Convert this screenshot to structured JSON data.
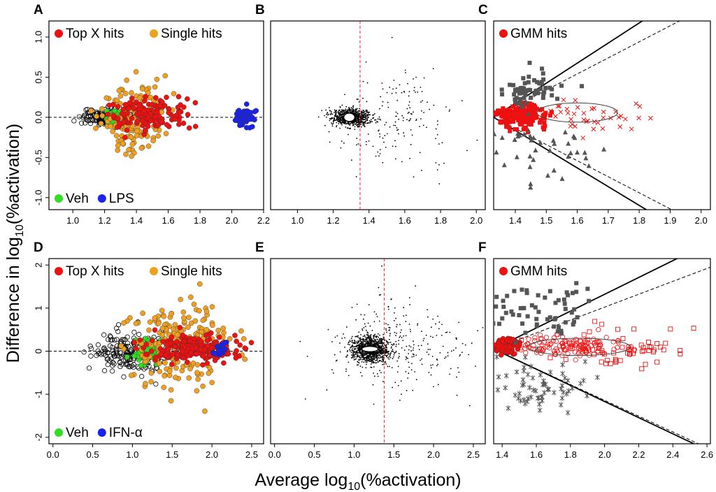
{
  "figure": {
    "ylabel_main": "Difference in log",
    "ylabel_sub": "10",
    "ylabel_rest": "(%activation)",
    "xlabel_main": "Average log",
    "xlabel_sub": "10",
    "xlabel_rest": "(%activation)"
  },
  "colors": {
    "top_x": "#ee1111",
    "single": "#f0a020",
    "veh": "#33dd22",
    "lps": "#1a22ee",
    "ifn": "#1a22ee",
    "gmm": "#ee1111",
    "black": "#000000",
    "gray": "#555555",
    "median_line": "#ee2222"
  },
  "chart_data": [
    {
      "id": "A",
      "panel_label": "A",
      "type": "scatter",
      "xlim": [
        0.85,
        2.2
      ],
      "ylim": [
        -1.15,
        1.2
      ],
      "xticks": [
        1.0,
        1.2,
        1.4,
        1.6,
        1.8,
        2.0,
        2.2
      ],
      "xtick_labels": [
        "1.0",
        "1.2",
        "1.4",
        "1.6",
        "1.8",
        "2.0",
        "2.2"
      ],
      "yticks": [
        -1.0,
        -0.5,
        0.0,
        0.5,
        1.0
      ],
      "ytick_labels": [
        "-1.0",
        "-0.5",
        "0.0",
        "0.5",
        "1.0"
      ],
      "hline_y": 0,
      "legend_top": [
        {
          "label": "Top X hits",
          "color": "top_x"
        },
        {
          "label": "Single hits",
          "color": "single"
        }
      ],
      "legend_bottom": [
        {
          "label": "Veh",
          "color": "veh"
        },
        {
          "label": "LPS",
          "color": "lps"
        }
      ],
      "groups": [
        {
          "name": "black open circles (non-hits)",
          "color": "black",
          "shape": "open",
          "center": [
            1.2,
            0.0
          ],
          "spread": [
            0.07,
            0.05
          ],
          "n": 180
        },
        {
          "name": "Veh",
          "color": "veh",
          "shape": "filled",
          "center": [
            1.28,
            0.0
          ],
          "spread": [
            0.035,
            0.04
          ],
          "n": 70
        },
        {
          "name": "Single hits",
          "color": "single",
          "shape": "filled",
          "center": [
            1.38,
            0.0
          ],
          "spread": [
            0.1,
            0.22
          ],
          "n": 160
        },
        {
          "name": "Top X hits",
          "color": "top_x",
          "shape": "filled",
          "center": [
            1.47,
            0.05
          ],
          "spread": [
            0.12,
            0.1
          ],
          "n": 150
        },
        {
          "name": "LPS",
          "color": "lps",
          "shape": "filled",
          "center": [
            2.08,
            0.0
          ],
          "spread": [
            0.03,
            0.06
          ],
          "n": 70
        }
      ]
    },
    {
      "id": "B",
      "panel_label": "B",
      "type": "scatter",
      "xlim": [
        0.85,
        2.05
      ],
      "ylim": [
        -1.15,
        1.2
      ],
      "xticks": [
        1.0,
        1.2,
        1.4,
        1.6,
        1.8,
        2.0
      ],
      "xtick_labels": [
        "1.0",
        "1.2",
        "1.4",
        "1.6",
        "1.8",
        "2.0"
      ],
      "yticks": [],
      "ytick_labels": [],
      "vline_x": 1.35,
      "ellipse": {
        "cx": 1.29,
        "cy": 0.0,
        "rx": 0.03,
        "ry": 0.05
      },
      "groups": [
        {
          "name": "all compounds",
          "color": "black",
          "shape": "dot",
          "center": [
            1.3,
            0.0
          ],
          "spread": [
            0.05,
            0.05
          ],
          "n": 900
        },
        {
          "name": "outliers",
          "color": "black",
          "shape": "dot",
          "center": [
            1.55,
            0.0
          ],
          "spread": [
            0.18,
            0.3
          ],
          "n": 180
        }
      ]
    },
    {
      "id": "C",
      "panel_label": "C",
      "type": "scatter",
      "xlim": [
        1.33,
        2.03
      ],
      "ylim": [
        -1.15,
        1.2
      ],
      "xticks": [
        1.4,
        1.5,
        1.6,
        1.7,
        1.8,
        1.9,
        2.0
      ],
      "xtick_labels": [
        "1.4",
        "1.5",
        "1.6",
        "1.7",
        "1.8",
        "1.9",
        "2.0"
      ],
      "yticks": [],
      "ytick_labels": [],
      "legend_top": [
        {
          "label": "GMM hits",
          "color": "gmm"
        }
      ],
      "guide_lines": [
        {
          "from": [
            1.33,
            0.0
          ],
          "to": [
            1.93,
            1.5
          ],
          "dash": false
        },
        {
          "from": [
            1.33,
            0.0
          ],
          "to": [
            1.93,
            -1.4
          ],
          "dash": false
        },
        {
          "from": [
            1.33,
            0.0
          ],
          "to": [
            1.93,
            1.2
          ],
          "dash": true
        },
        {
          "from": [
            1.33,
            0.0
          ],
          "to": [
            1.93,
            -1.2
          ],
          "dash": true
        }
      ],
      "ellipse": {
        "cx": 1.6,
        "cy": 0.06,
        "rx": 0.13,
        "ry": 0.12
      },
      "groups": [
        {
          "name": "GMM hits",
          "color": "gmm",
          "shape": "filled_square",
          "center": [
            1.42,
            0.02
          ],
          "spread": [
            0.04,
            0.08
          ],
          "n": 180
        },
        {
          "name": "GMM hits outliers",
          "color": "gmm",
          "shape": "cross",
          "center": [
            1.65,
            0.0
          ],
          "spread": [
            0.1,
            0.12
          ],
          "n": 40
        },
        {
          "name": "upper arm",
          "color": "gray",
          "shape": "filled_square",
          "center": [
            1.45,
            0.35
          ],
          "spread": [
            0.06,
            0.12
          ],
          "n": 60
        },
        {
          "name": "lower arm",
          "color": "gray",
          "shape": "triangle",
          "center": [
            1.5,
            -0.45
          ],
          "spread": [
            0.1,
            0.2
          ],
          "n": 40
        }
      ]
    },
    {
      "id": "D",
      "panel_label": "D",
      "type": "scatter",
      "xlim": [
        -0.05,
        2.65
      ],
      "ylim": [
        -2.15,
        2.15
      ],
      "xticks": [
        0.0,
        0.5,
        1.0,
        1.5,
        2.0,
        2.5
      ],
      "xtick_labels": [
        "0.0",
        "0.5",
        "1.0",
        "1.5",
        "2.0",
        "2.5"
      ],
      "yticks": [
        -2,
        -1,
        0,
        1,
        2
      ],
      "ytick_labels": [
        "-2",
        "-1",
        "0",
        "1",
        "2"
      ],
      "hline_y": 0,
      "legend_top": [
        {
          "label": "Top X hits",
          "color": "top_x"
        },
        {
          "label": "Single hits",
          "color": "single"
        }
      ],
      "legend_bottom": [
        {
          "label": "Veh",
          "color": "veh"
        },
        {
          "label": "IFN-α",
          "color": "ifn"
        }
      ],
      "groups": [
        {
          "name": "black open circles (non-hits)",
          "color": "black",
          "shape": "open",
          "center": [
            1.0,
            0.0
          ],
          "spread": [
            0.25,
            0.25
          ],
          "n": 200
        },
        {
          "name": "Veh",
          "color": "veh",
          "shape": "filled",
          "center": [
            1.2,
            0.0
          ],
          "spread": [
            0.08,
            0.15
          ],
          "n": 80
        },
        {
          "name": "Single hits",
          "color": "single",
          "shape": "filled",
          "center": [
            1.6,
            0.1
          ],
          "spread": [
            0.3,
            0.5
          ],
          "n": 200
        },
        {
          "name": "Top X hits",
          "color": "top_x",
          "shape": "filled",
          "center": [
            1.75,
            0.05
          ],
          "spread": [
            0.3,
            0.15
          ],
          "n": 220
        },
        {
          "name": "IFN-α",
          "color": "ifn",
          "shape": "filled",
          "center": [
            2.1,
            0.05
          ],
          "spread": [
            0.04,
            0.07
          ],
          "n": 25
        }
      ]
    },
    {
      "id": "E",
      "panel_label": "E",
      "type": "scatter",
      "xlim": [
        -0.05,
        2.65
      ],
      "ylim": [
        -2.15,
        2.15
      ],
      "xticks": [
        0.0,
        0.5,
        1.0,
        1.5,
        2.0,
        2.5
      ],
      "xtick_labels": [
        "0.0",
        "0.5",
        "1.0",
        "1.5",
        "2.0",
        "2.5"
      ],
      "yticks": [],
      "ytick_labels": [],
      "vline_x": 1.38,
      "ellipse": {
        "cx": 1.2,
        "cy": 0.05,
        "rx": 0.1,
        "ry": 0.06
      },
      "groups": [
        {
          "name": "all compounds",
          "color": "black",
          "shape": "dot",
          "center": [
            1.2,
            0.05
          ],
          "spread": [
            0.12,
            0.15
          ],
          "n": 1100
        },
        {
          "name": "outliers",
          "color": "black",
          "shape": "dot",
          "center": [
            1.6,
            0.1
          ],
          "spread": [
            0.45,
            0.6
          ],
          "n": 250
        }
      ]
    },
    {
      "id": "F",
      "panel_label": "F",
      "type": "scatter",
      "xlim": [
        1.35,
        2.62
      ],
      "ylim": [
        -2.15,
        2.15
      ],
      "xticks": [
        1.4,
        1.6,
        1.8,
        2.0,
        2.2,
        2.4,
        2.6
      ],
      "xtick_labels": [
        "1.4",
        "1.6",
        "1.8",
        "2.0",
        "2.2",
        "2.4",
        "2.6"
      ],
      "yticks": [],
      "ytick_labels": [],
      "legend_top": [
        {
          "label": "GMM hits",
          "color": "gmm"
        }
      ],
      "guide_lines": [
        {
          "from": [
            1.35,
            0.05
          ],
          "to": [
            2.45,
            2.2
          ],
          "dash": false
        },
        {
          "from": [
            1.35,
            0.05
          ],
          "to": [
            2.55,
            -2.2
          ],
          "dash": false
        },
        {
          "from": [
            1.35,
            0.05
          ],
          "to": [
            2.62,
            1.95
          ],
          "dash": true
        },
        {
          "from": [
            1.35,
            0.05
          ],
          "to": [
            2.55,
            -2.15
          ],
          "dash": true
        }
      ],
      "ellipse": {
        "cx": 1.85,
        "cy": 0.1,
        "rx": 0.3,
        "ry": 0.2
      },
      "groups": [
        {
          "name": "GMM hits core",
          "color": "gmm",
          "shape": "filled",
          "center": [
            1.42,
            0.1
          ],
          "spread": [
            0.03,
            0.08
          ],
          "n": 120
        },
        {
          "name": "GMM hits circles",
          "color": "gmm",
          "shape": "open",
          "center": [
            1.75,
            0.1
          ],
          "spread": [
            0.18,
            0.12
          ],
          "n": 120
        },
        {
          "name": "GMM hits squares",
          "color": "gmm",
          "shape": "open_square",
          "center": [
            2.05,
            0.1
          ],
          "spread": [
            0.25,
            0.2
          ],
          "n": 70
        },
        {
          "name": "upper arm",
          "color": "gray",
          "shape": "filled_square",
          "center": [
            1.6,
            0.9
          ],
          "spread": [
            0.15,
            0.3
          ],
          "n": 60
        },
        {
          "name": "lower arm",
          "color": "gray",
          "shape": "star",
          "center": [
            1.6,
            -0.8
          ],
          "spread": [
            0.15,
            0.3
          ],
          "n": 70
        }
      ]
    }
  ]
}
